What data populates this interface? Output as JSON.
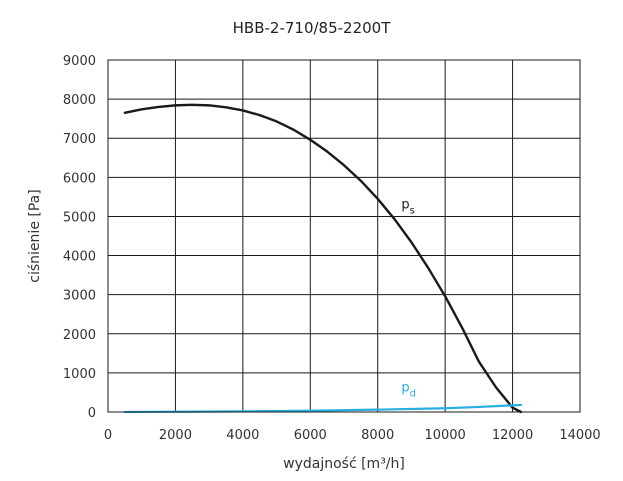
{
  "chart_data": {
    "type": "line",
    "title": "HBB-2-710/85-2200T",
    "xlabel": "wydajność [m³/h]",
    "ylabel": "ciśnienie [Pa]",
    "xlim": [
      0,
      14000
    ],
    "ylim": [
      0,
      9000
    ],
    "xticks": [
      0,
      2000,
      4000,
      6000,
      8000,
      10000,
      12000,
      14000
    ],
    "yticks": [
      0,
      1000,
      2000,
      3000,
      4000,
      5000,
      6000,
      7000,
      8000,
      9000
    ],
    "grid": true,
    "series": [
      {
        "name": "p",
        "subscript": "s",
        "color": "#1a1a1a",
        "x": [
          500,
          1000,
          1500,
          2000,
          2500,
          3000,
          3500,
          4000,
          4500,
          5000,
          5500,
          6000,
          6500,
          7000,
          7500,
          8000,
          8500,
          9000,
          9500,
          10000,
          10500,
          11000,
          11500,
          12000,
          12250
        ],
        "y": [
          7650,
          7740,
          7800,
          7840,
          7855,
          7840,
          7790,
          7710,
          7590,
          7430,
          7220,
          6960,
          6660,
          6310,
          5910,
          5450,
          4930,
          4340,
          3680,
          2960,
          2160,
          1290,
          640,
          110,
          0
        ]
      },
      {
        "name": "p",
        "subscript": "d",
        "color": "#29aee0",
        "x": [
          500,
          2000,
          4000,
          6000,
          8000,
          10000,
          11000,
          12000,
          12250
        ],
        "y": [
          2,
          6,
          17,
          34,
          60,
          96,
          130,
          170,
          180
        ]
      }
    ]
  }
}
